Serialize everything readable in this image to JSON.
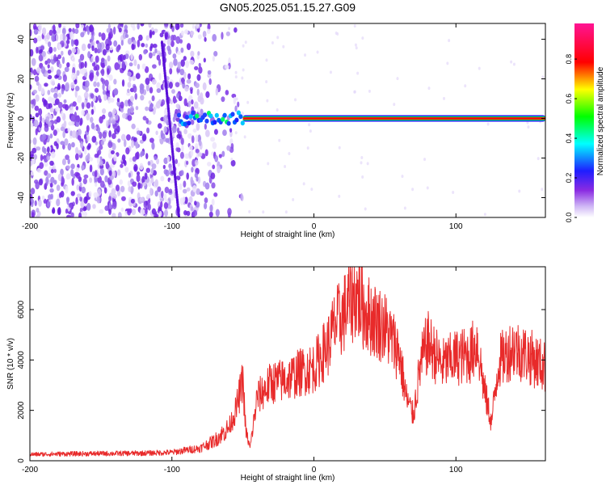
{
  "title": "GN05.2025.051.15.27.G09",
  "chart_data": [
    {
      "type": "heatmap",
      "xlabel": "Height of straight line (km)",
      "ylabel": "Frequency (Hz)",
      "xlim": [
        -200,
        163
      ],
      "ylim": [
        -50,
        48
      ],
      "x_ticks": [
        -200,
        -100,
        0,
        100
      ],
      "y_ticks": [
        -40,
        -20,
        0,
        20,
        40
      ],
      "colorbar": {
        "label": "Normalized spectral amplitude",
        "range": [
          0,
          0.98
        ],
        "ticks": [
          "0.0",
          "0.2",
          "0.4",
          "0.6",
          "0.8"
        ],
        "colormap": [
          "#ffffff",
          "#8a2be2",
          "#0000ff",
          "#00ffff",
          "#00ff00",
          "#ffff00",
          "#ff0000",
          "#ff00ff"
        ]
      },
      "features": {
        "noise_region_x": [
          -200,
          -80
        ],
        "noise_peak_x": [
          -100,
          -95
        ],
        "signal_line_frequency": 0,
        "signal_line_x": [
          -95,
          163
        ],
        "saturated_line_x": [
          -50,
          163
        ]
      }
    },
    {
      "type": "line",
      "xlabel": "Height of straight line (km)",
      "ylabel": "SNR (10 * v/v)",
      "xlim": [
        -200,
        163
      ],
      "ylim": [
        0,
        7700
      ],
      "x_ticks": [
        -200,
        -100,
        0,
        100
      ],
      "y_ticks": [
        0,
        2000,
        4000,
        6000
      ],
      "color": "#e82a2a",
      "series": [
        {
          "x": [
            -200,
            -180,
            -160,
            -140,
            -120,
            -100,
            -90,
            -80,
            -70,
            -60,
            -55,
            -50,
            -48,
            -45,
            -40,
            -30,
            -20,
            -10,
            0,
            10,
            15,
            20,
            25,
            30,
            35,
            40,
            50,
            60,
            65,
            70,
            75,
            80,
            90,
            100,
            110,
            115,
            120,
            125,
            130,
            140,
            150,
            163
          ],
          "y": [
            250,
            270,
            280,
            290,
            300,
            330,
            420,
            500,
            800,
            1300,
            2000,
            3200,
            1200,
            500,
            2500,
            3100,
            3200,
            3500,
            3700,
            4600,
            5400,
            5700,
            6300,
            6600,
            6000,
            5700,
            5300,
            4300,
            2500,
            1800,
            3800,
            4700,
            3800,
            4100,
            4200,
            4700,
            2800,
            1500,
            3900,
            4500,
            4200,
            3700
          ]
        }
      ]
    }
  ]
}
